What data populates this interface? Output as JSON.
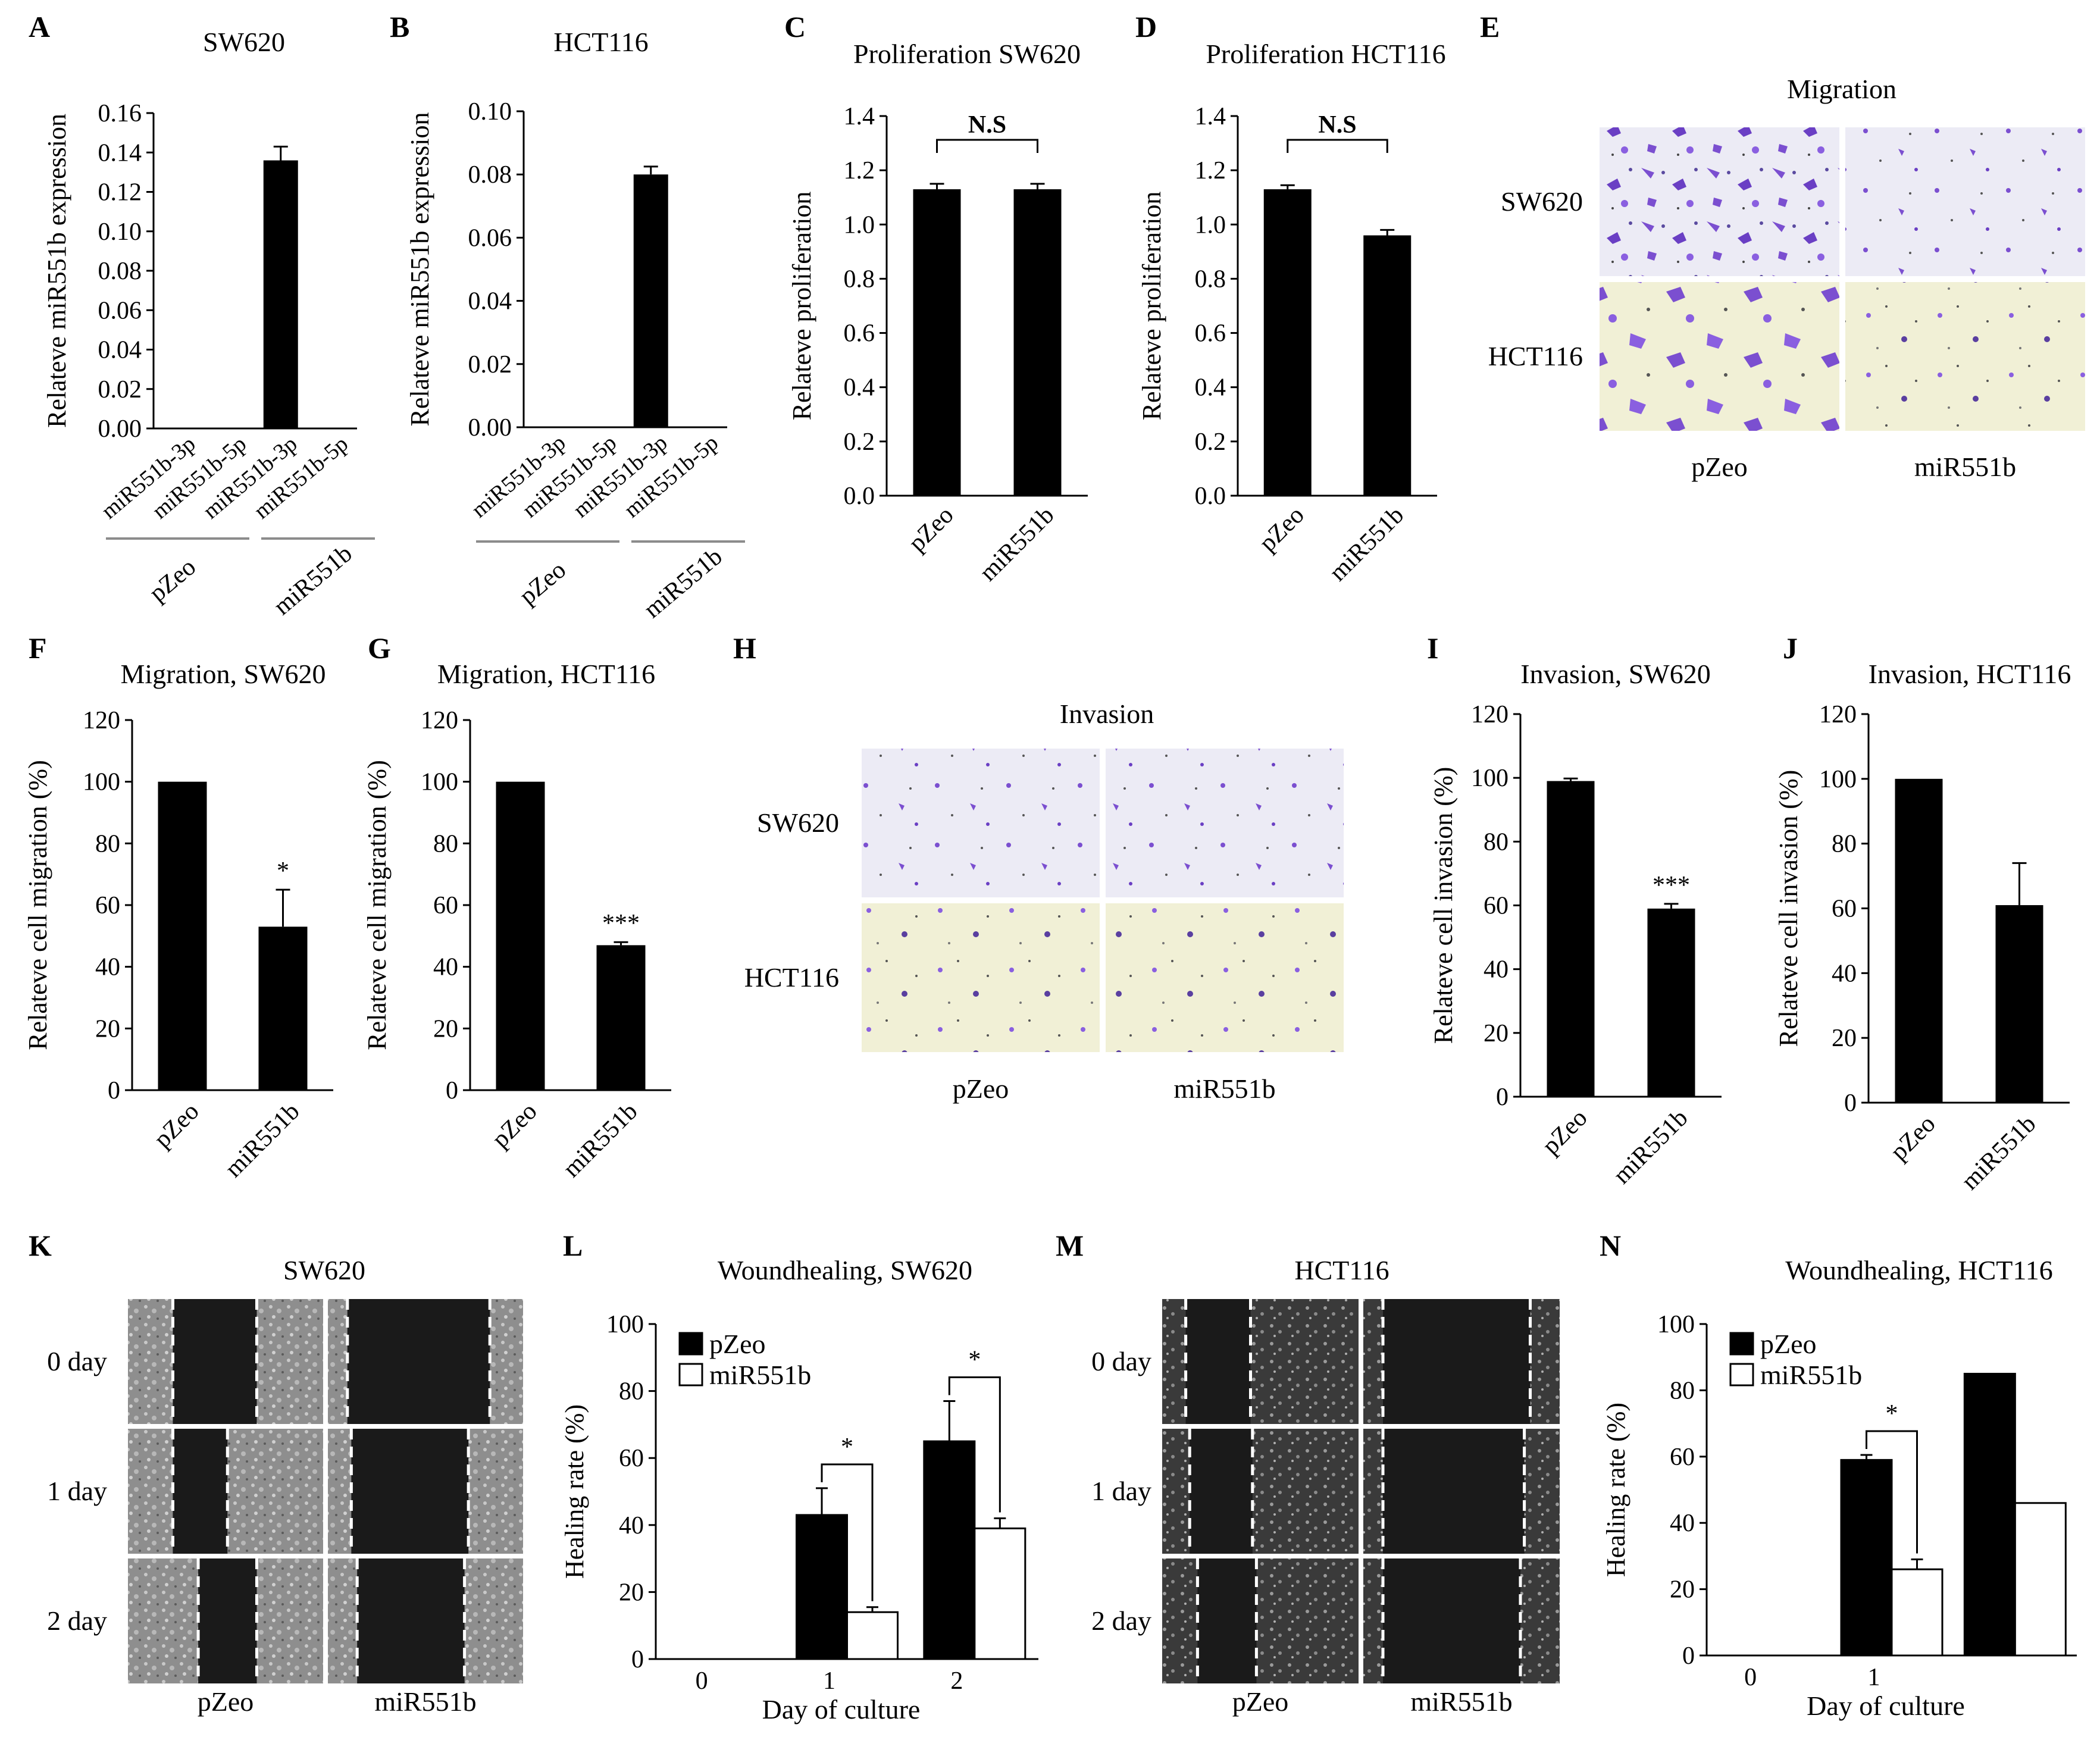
{
  "panels": {
    "A": {
      "letter": "A",
      "title": "SW620"
    },
    "B": {
      "letter": "B",
      "title": "HCT116"
    },
    "C": {
      "letter": "C",
      "title": "Proliferation SW620"
    },
    "D": {
      "letter": "D",
      "title": "Proliferation HCT116"
    },
    "E": {
      "letter": "E",
      "title": "Migration",
      "rows": [
        "SW620",
        "HCT116"
      ],
      "cols": [
        "pZeo",
        "miR551b"
      ]
    },
    "F": {
      "letter": "F",
      "title": "Migration, SW620"
    },
    "G": {
      "letter": "G",
      "title": "Migration, HCT116"
    },
    "H": {
      "letter": "H",
      "title": "Invasion",
      "rows": [
        "SW620",
        "HCT116"
      ],
      "cols": [
        "pZeo",
        "miR551b"
      ]
    },
    "I": {
      "letter": "I",
      "title": "Invasion, SW620"
    },
    "J": {
      "letter": "J",
      "title": "Invasion, HCT116"
    },
    "K": {
      "letter": "K",
      "title": "SW620",
      "rows": [
        "0 day",
        "1 day",
        "2 day"
      ],
      "cols": [
        "pZeo",
        "miR551b"
      ]
    },
    "L": {
      "letter": "L",
      "title": "Woundhealing, SW620"
    },
    "M": {
      "letter": "M",
      "title": "HCT116",
      "rows": [
        "0 day",
        "1 day",
        "2 day"
      ],
      "cols": [
        "pZeo",
        "miR551b"
      ]
    },
    "N": {
      "letter": "N",
      "title": "Woundhealing, HCT116"
    }
  },
  "colors": {
    "bar_black": "#000000",
    "bar_white": "#ffffff",
    "group_line": "#8c8c8c",
    "stain_purple": "#7b4fd0",
    "stain_bg_light": "#ecebf5",
    "stain_bg_yellow": "#f1f0d6",
    "wound_gray": "#9a9a9a"
  },
  "chart_data": [
    {
      "id": "A",
      "type": "bar",
      "title": "SW620",
      "ylabel": "Relateve miR551b expression",
      "ylim": [
        0,
        0.16
      ],
      "yticks": [
        "0.00",
        "0.02",
        "0.04",
        "0.06",
        "0.08",
        "0.10",
        "0.12",
        "0.14",
        "0.16"
      ],
      "categories": [
        "miR551b-3p",
        "miR551b-5p",
        "miR551b-3p",
        "miR551b-5p"
      ],
      "values": [
        0,
        0,
        0.136,
        0
      ],
      "errors": [
        0,
        0,
        0.007,
        0
      ],
      "groups": [
        {
          "label": "pZeo",
          "span": [
            0,
            1
          ]
        },
        {
          "label": "miR551b",
          "span": [
            2,
            3
          ]
        }
      ]
    },
    {
      "id": "B",
      "type": "bar",
      "title": "HCT116",
      "ylabel": "Relateve miR551b expression",
      "ylim": [
        0,
        0.1
      ],
      "yticks": [
        "0.00",
        "0.02",
        "0.04",
        "0.06",
        "0.08",
        "0.10"
      ],
      "categories": [
        "miR551b-3p",
        "miR551b-5p",
        "miR551b-3p",
        "miR551b-5p"
      ],
      "values": [
        0,
        0,
        0.08,
        0
      ],
      "errors": [
        0,
        0,
        0.0025,
        0
      ],
      "groups": [
        {
          "label": "pZeo",
          "span": [
            0,
            1
          ]
        },
        {
          "label": "miR551b",
          "span": [
            2,
            3
          ]
        }
      ]
    },
    {
      "id": "C",
      "type": "bar",
      "title": "Proliferation SW620",
      "ylabel": "Relateve proliferation",
      "ylim": [
        0,
        1.4
      ],
      "yticks": [
        "0.0",
        "0.2",
        "0.4",
        "0.6",
        "0.8",
        "1.0",
        "1.2",
        "1.4"
      ],
      "categories": [
        "pZeo",
        "miR551b"
      ],
      "values": [
        1.13,
        1.13
      ],
      "errors": [
        0.02,
        0.02
      ],
      "annotations": [
        {
          "text": "N.S",
          "between": [
            0,
            1
          ]
        }
      ]
    },
    {
      "id": "D",
      "type": "bar",
      "title": "Proliferation HCT116",
      "ylabel": "Relateve proliferation",
      "ylim": [
        0,
        1.4
      ],
      "yticks": [
        "0.0",
        "0.2",
        "0.4",
        "0.6",
        "0.8",
        "1.0",
        "1.2",
        "1.4"
      ],
      "categories": [
        "pZeo",
        "miR551b"
      ],
      "values": [
        1.13,
        0.96
      ],
      "errors": [
        0.015,
        0.02
      ],
      "annotations": [
        {
          "text": "N.S",
          "between": [
            0,
            1
          ]
        }
      ]
    },
    {
      "id": "F",
      "type": "bar",
      "title": "Migration, SW620",
      "ylabel": "Relateve cell migration (%)",
      "ylim": [
        0,
        120
      ],
      "yticks": [
        "0",
        "20",
        "40",
        "60",
        "80",
        "100",
        "120"
      ],
      "categories": [
        "pZeo",
        "miR551b"
      ],
      "values": [
        100,
        53
      ],
      "errors": [
        0,
        12
      ],
      "stars": [
        "",
        "*"
      ]
    },
    {
      "id": "G",
      "type": "bar",
      "title": "Migration, HCT116",
      "ylabel": "Relateve cell migration (%)",
      "ylim": [
        0,
        120
      ],
      "yticks": [
        "0",
        "20",
        "40",
        "60",
        "80",
        "100",
        "120"
      ],
      "categories": [
        "pZeo",
        "miR551b"
      ],
      "values": [
        100,
        47
      ],
      "errors": [
        0,
        1
      ],
      "stars": [
        "",
        "***"
      ]
    },
    {
      "id": "I",
      "type": "bar",
      "title": "Invasion, SW620",
      "ylabel": "Relateve cell invasion (%)",
      "ylim": [
        0,
        120
      ],
      "yticks": [
        "0",
        "20",
        "40",
        "60",
        "80",
        "100",
        "120"
      ],
      "categories": [
        "pZeo",
        "miR551b"
      ],
      "values": [
        99,
        59
      ],
      "errors": [
        0.8,
        1.5
      ],
      "stars": [
        "",
        "***"
      ]
    },
    {
      "id": "J",
      "type": "bar",
      "title": "Invasion, HCT116",
      "ylabel": "Relateve cell invasion (%)",
      "ylim": [
        0,
        120
      ],
      "yticks": [
        "0",
        "20",
        "40",
        "60",
        "80",
        "100",
        "120"
      ],
      "categories": [
        "pZeo",
        "miR551b"
      ],
      "values": [
        100,
        61
      ],
      "errors": [
        0,
        13
      ],
      "stars": [
        "",
        ""
      ]
    },
    {
      "id": "L",
      "type": "bar",
      "title": "Woundhealing, SW620",
      "xlabel": "Day of culture",
      "ylabel": "Healing rate (%)",
      "ylim": [
        0,
        100
      ],
      "yticks": [
        "0",
        "20",
        "40",
        "60",
        "80",
        "100"
      ],
      "categories": [
        "0",
        "1",
        "2"
      ],
      "series": [
        {
          "name": "pZeo",
          "values": [
            0,
            43,
            65
          ],
          "errors": [
            0,
            8,
            12
          ]
        },
        {
          "name": "miR551b",
          "values": [
            0,
            14,
            39
          ],
          "errors": [
            0,
            1.5,
            3
          ]
        }
      ],
      "annotations": [
        {
          "text": "*",
          "category": 1
        },
        {
          "text": "*",
          "category": 2
        }
      ]
    },
    {
      "id": "N",
      "type": "bar",
      "title": "Woundhealing, HCT116",
      "xlabel": "Day of culture",
      "ylabel": "Healing rate (%)",
      "ylim": [
        0,
        100
      ],
      "yticks": [
        "0",
        "20",
        "40",
        "60",
        "80",
        "100"
      ],
      "categories": [
        "0",
        "1",
        ""
      ],
      "series": [
        {
          "name": "pZeo",
          "values": [
            0,
            59,
            85
          ],
          "errors": [
            0,
            1.5,
            0
          ]
        },
        {
          "name": "miR551b",
          "values": [
            0,
            26,
            46
          ],
          "errors": [
            0,
            3,
            0
          ]
        }
      ],
      "annotations": [
        {
          "text": "*",
          "category": 1
        }
      ]
    }
  ]
}
